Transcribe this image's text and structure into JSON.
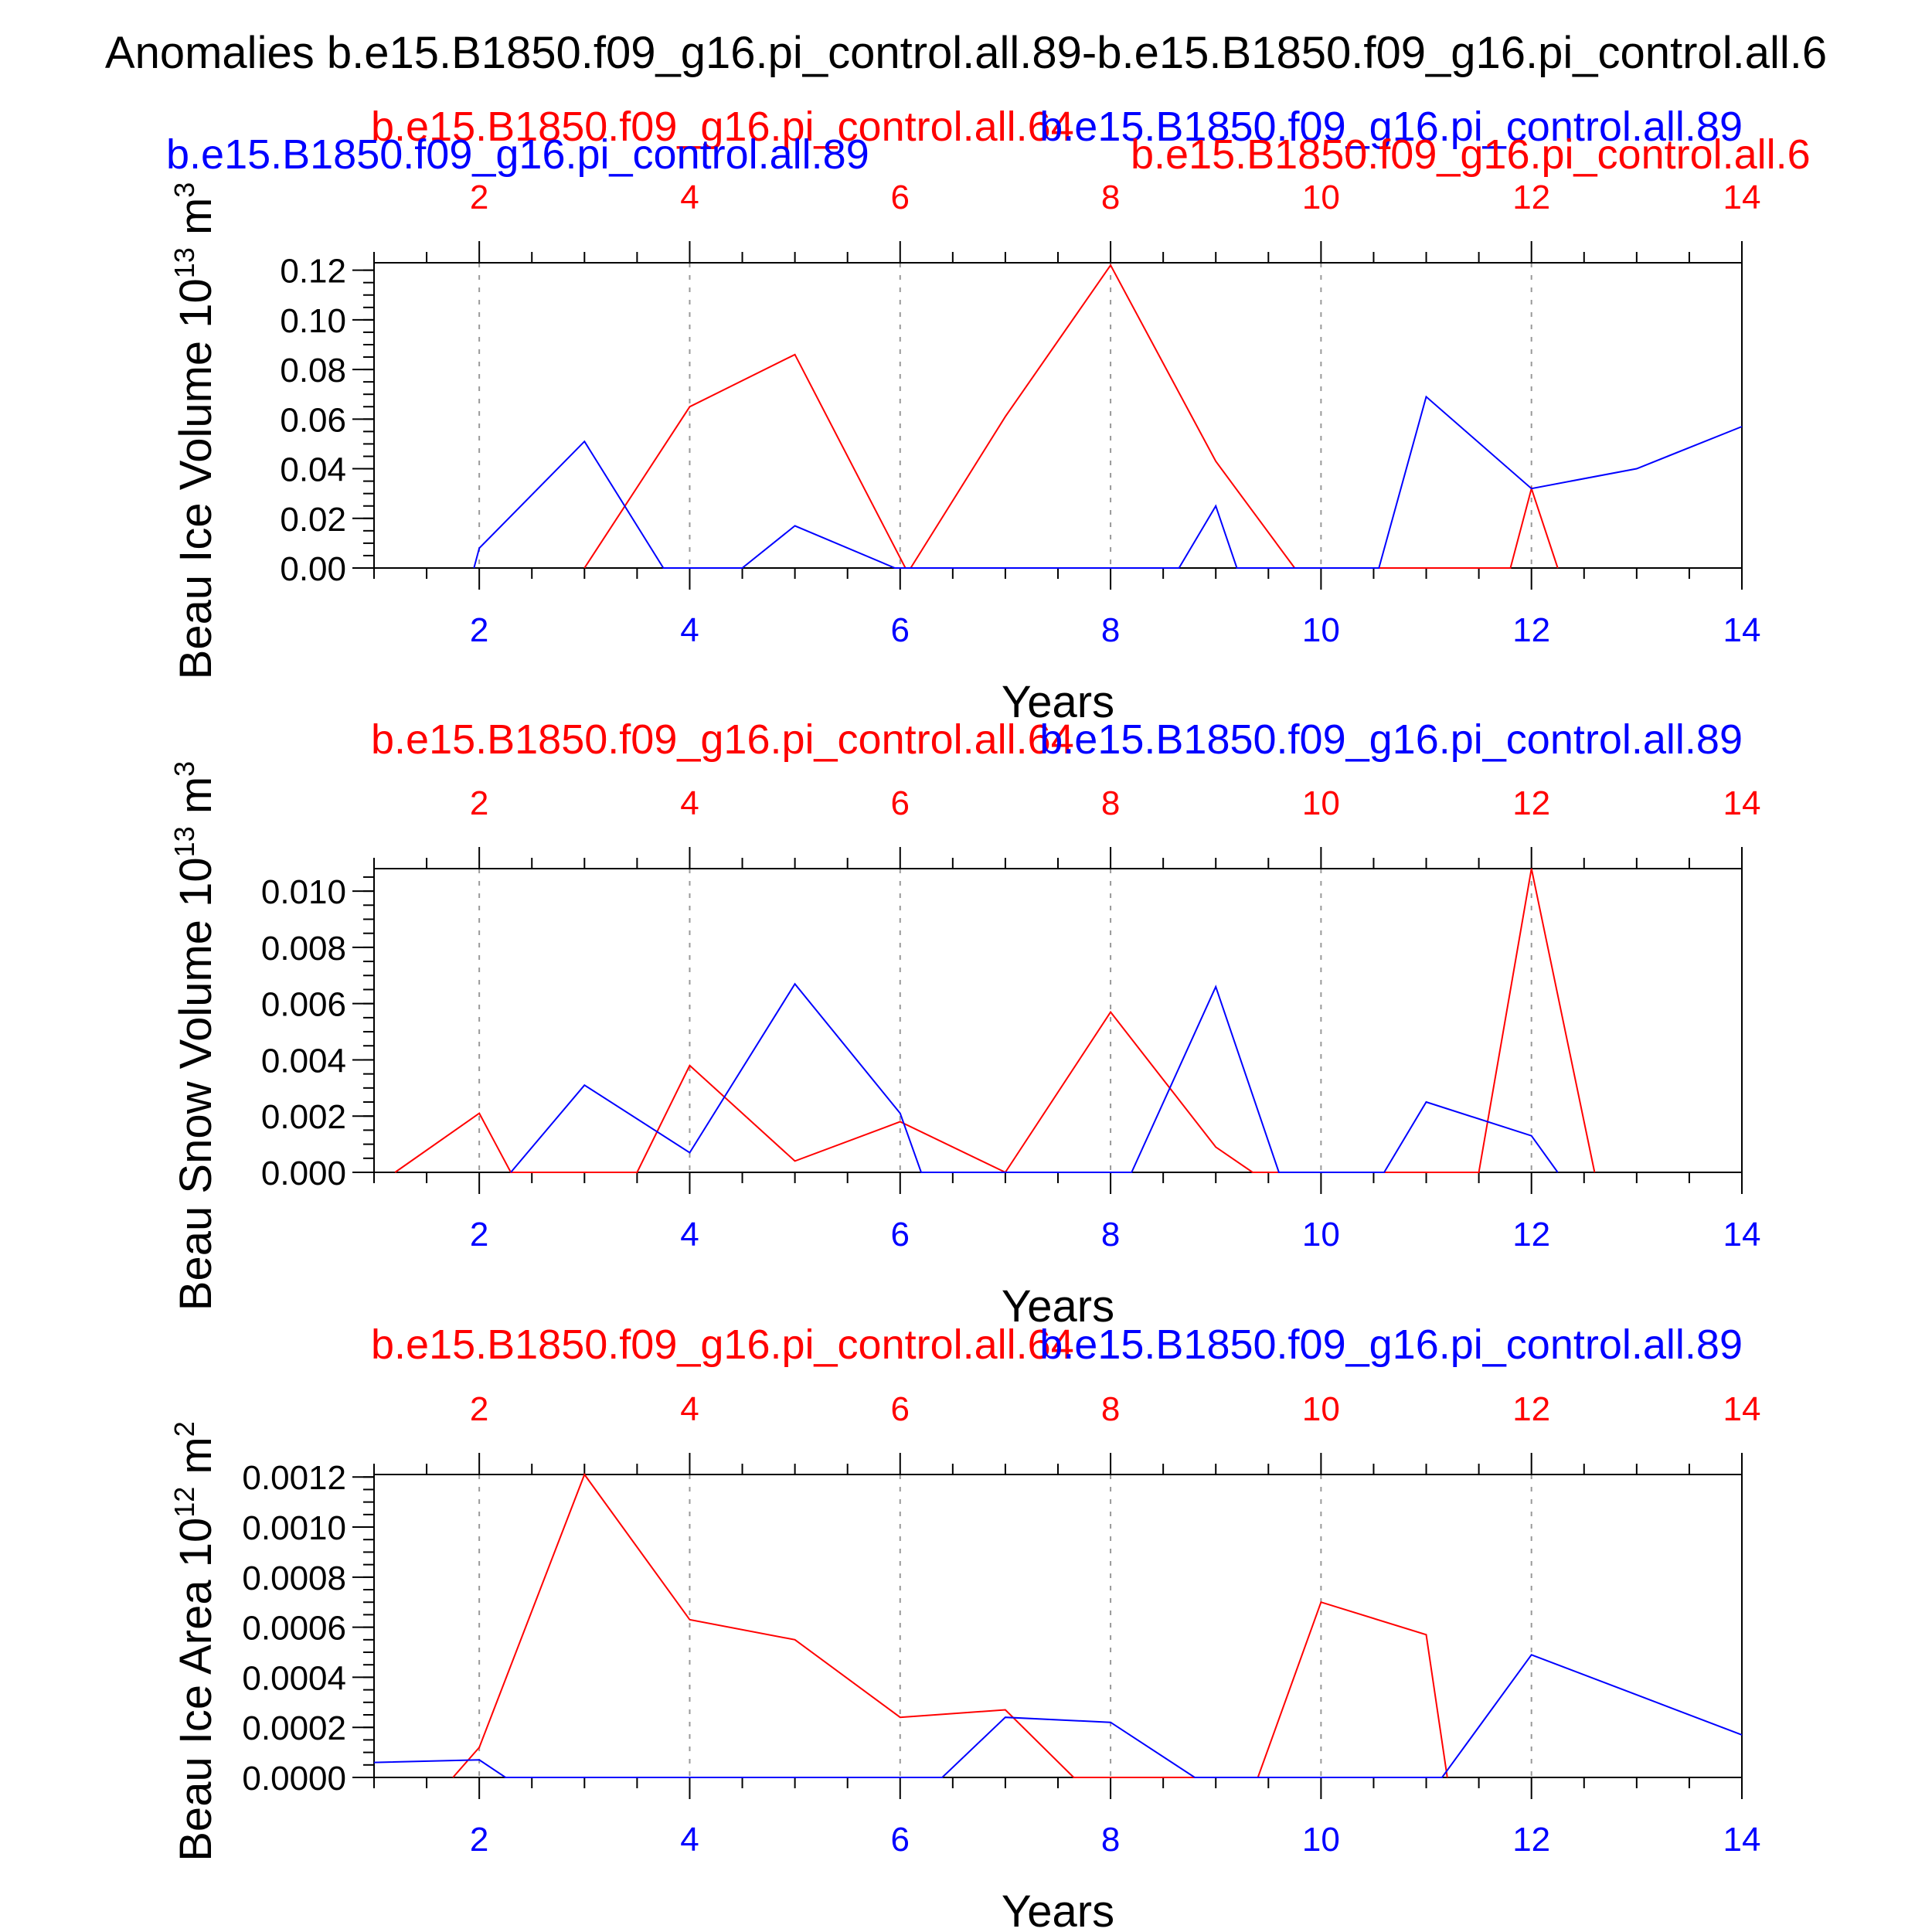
{
  "title": "Anomalies b.e15.B1850.f09_g16.pi_control.all.89-b.e15.B1850.f09_g16.pi_control.all.6",
  "header_labels": {
    "red_overlay": "b.e15.B1850.f09_g16.pi_control.all.64",
    "blue_left": "b.e15.B1850.f09_g16.pi_control.all.89",
    "blue_right": "b.e15.B1850.f09_g16.pi_control.all.89",
    "red_right": "b.e15.B1850.f09_g16.pi_control.all.6"
  },
  "colors": {
    "red_series": "#ff0000",
    "blue_series": "#0000ff",
    "grid": "#999999"
  },
  "chart_data": [
    {
      "type": "line",
      "ylabel": "Beau Ice Volume 10",
      "ylabel_exp": "13",
      "ylabel_unit": " m",
      "ylabel_unit_exp": "3",
      "xlabel": "Years",
      "xlim": [
        1,
        14
      ],
      "ylim": [
        0,
        0.123
      ],
      "x_ticks": [
        2,
        4,
        6,
        8,
        10,
        12,
        14
      ],
      "x_tick_labels": [
        "2",
        "4",
        "6",
        "8",
        "10",
        "12",
        "14"
      ],
      "y_ticks": [
        0,
        0.02,
        0.04,
        0.06,
        0.08,
        0.1,
        0.12
      ],
      "y_tick_labels": [
        "0.00",
        "0.02",
        "0.04",
        "0.06",
        "0.08",
        "0.10",
        "0.12"
      ],
      "y_minor_step": 0.005,
      "x_minor_step": 0.5,
      "series": [
        {
          "name": "b.e15.B1850.f09_g16.pi_control.all.64",
          "color": "red",
          "points": [
            [
              3.0,
              0.0
            ],
            [
              4.0,
              0.065
            ],
            [
              5.0,
              0.086
            ],
            [
              6.05,
              0.0
            ],
            [
              6.1,
              0.0
            ],
            [
              7.0,
              0.061
            ],
            [
              8.0,
              0.122
            ],
            [
              9.0,
              0.043
            ],
            [
              9.75,
              0.0
            ],
            [
              11.8,
              0.0
            ],
            [
              12.0,
              0.032
            ],
            [
              12.25,
              0.0
            ]
          ]
        },
        {
          "name": "b.e15.B1850.f09_g16.pi_control.all.89",
          "color": "blue",
          "points": [
            [
              1.95,
              0.0
            ],
            [
              2.0,
              0.008
            ],
            [
              3.0,
              0.051
            ],
            [
              3.75,
              0.0
            ],
            [
              4.5,
              0.0
            ],
            [
              5.0,
              0.017
            ],
            [
              5.95,
              0.0
            ],
            [
              8.65,
              0.0
            ],
            [
              9.0,
              0.025
            ],
            [
              9.2,
              0.0
            ],
            [
              10.55,
              0.0
            ],
            [
              11.0,
              0.069
            ],
            [
              12.0,
              0.032
            ],
            [
              13.0,
              0.04
            ],
            [
              14.0,
              0.057
            ]
          ]
        }
      ]
    },
    {
      "type": "line",
      "ylabel": "Beau Snow Volume 10",
      "ylabel_exp": "13",
      "ylabel_unit": " m",
      "ylabel_unit_exp": "3",
      "xlabel": "Years",
      "xlim": [
        1,
        14
      ],
      "ylim": [
        0,
        0.0108
      ],
      "x_ticks": [
        2,
        4,
        6,
        8,
        10,
        12,
        14
      ],
      "x_tick_labels": [
        "2",
        "4",
        "6",
        "8",
        "10",
        "12",
        "14"
      ],
      "y_ticks": [
        0,
        0.002,
        0.004,
        0.006,
        0.008,
        0.01
      ],
      "y_tick_labels": [
        "0.000",
        "0.002",
        "0.004",
        "0.006",
        "0.008",
        "0.010"
      ],
      "y_minor_step": 0.0005,
      "x_minor_step": 0.5,
      "series": [
        {
          "name": "b.e15.B1850.f09_g16.pi_control.all.64",
          "color": "red",
          "points": [
            [
              1.2,
              0.0
            ],
            [
              2.0,
              0.0021
            ],
            [
              2.3,
              0.0
            ],
            [
              3.5,
              0.0
            ],
            [
              4.0,
              0.0038
            ],
            [
              5.0,
              0.0004
            ],
            [
              6.0,
              0.0018
            ],
            [
              7.0,
              0.0
            ],
            [
              8.0,
              0.0057
            ],
            [
              9.0,
              0.0009
            ],
            [
              9.35,
              0.0
            ],
            [
              11.5,
              0.0
            ],
            [
              12.0,
              0.0108
            ],
            [
              12.6,
              0.0
            ]
          ]
        },
        {
          "name": "b.e15.B1850.f09_g16.pi_control.all.89",
          "color": "blue",
          "points": [
            [
              2.3,
              0.0
            ],
            [
              3.0,
              0.0031
            ],
            [
              4.0,
              0.0007
            ],
            [
              5.0,
              0.0067
            ],
            [
              6.0,
              0.0021
            ],
            [
              6.2,
              0.0
            ],
            [
              8.2,
              0.0
            ],
            [
              9.0,
              0.0066
            ],
            [
              9.6,
              0.0
            ],
            [
              10.6,
              0.0
            ],
            [
              11.0,
              0.0025
            ],
            [
              12.0,
              0.0013
            ],
            [
              12.25,
              0.0
            ]
          ]
        }
      ]
    },
    {
      "type": "line",
      "ylabel": "Beau Ice Area 10",
      "ylabel_exp": "12",
      "ylabel_unit": " m",
      "ylabel_unit_exp": "2",
      "xlabel": "Years",
      "xlim": [
        1,
        14
      ],
      "ylim": [
        0,
        0.00121
      ],
      "x_ticks": [
        2,
        4,
        6,
        8,
        10,
        12,
        14
      ],
      "x_tick_labels": [
        "2",
        "4",
        "6",
        "8",
        "10",
        "12",
        "14"
      ],
      "y_ticks": [
        0,
        0.0002,
        0.0004,
        0.0006,
        0.0008,
        0.001,
        0.0012
      ],
      "y_tick_labels": [
        "0.0000",
        "0.0002",
        "0.0004",
        "0.0006",
        "0.0008",
        "0.0010",
        "0.0012"
      ],
      "y_minor_step": 5e-05,
      "x_minor_step": 0.5,
      "series": [
        {
          "name": "b.e15.B1850.f09_g16.pi_control.all.64",
          "color": "red",
          "points": [
            [
              1.75,
              0.0
            ],
            [
              2.0,
              0.00012
            ],
            [
              3.0,
              0.00121
            ],
            [
              4.0,
              0.00063
            ],
            [
              5.0,
              0.00055
            ],
            [
              6.0,
              0.00024
            ],
            [
              7.0,
              0.00027
            ],
            [
              7.65,
              0.0
            ],
            [
              9.4,
              0.0
            ],
            [
              10.0,
              0.0007
            ],
            [
              11.0,
              0.00057
            ],
            [
              11.2,
              0.0
            ]
          ]
        },
        {
          "name": "b.e15.B1850.f09_g16.pi_control.all.89",
          "color": "blue",
          "points": [
            [
              1.0,
              6e-05
            ],
            [
              2.0,
              7e-05
            ],
            [
              2.25,
              0.0
            ],
            [
              6.4,
              0.0
            ],
            [
              7.0,
              0.00024
            ],
            [
              8.0,
              0.00022
            ],
            [
              8.8,
              0.0
            ],
            [
              11.15,
              0.0
            ],
            [
              12.0,
              0.00049
            ],
            [
              13.0,
              0.00033
            ],
            [
              14.0,
              0.00017
            ]
          ]
        }
      ]
    }
  ]
}
